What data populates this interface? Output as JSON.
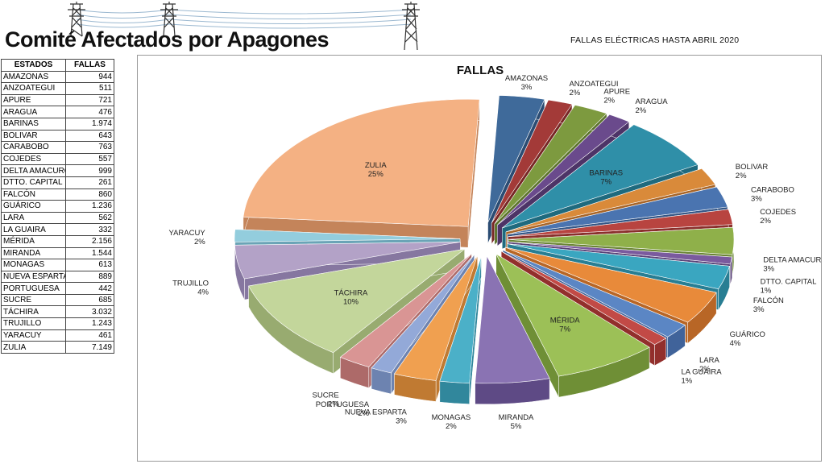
{
  "header": {
    "brand_title": "Comité Afectados por Apagones",
    "top_right_title": "FALLAS ELÉCTRICAS HASTA ABRIL 2020"
  },
  "table": {
    "headers": [
      "ESTADOS",
      "FALLAS"
    ],
    "rows": [
      {
        "estado": "AMAZONAS",
        "fallas": "944"
      },
      {
        "estado": "ANZOATEGUI",
        "fallas": "511"
      },
      {
        "estado": "APURE",
        "fallas": "721"
      },
      {
        "estado": "ARAGUA",
        "fallas": "476"
      },
      {
        "estado": "BARINAS",
        "fallas": "1.974"
      },
      {
        "estado": "BOLIVAR",
        "fallas": "643"
      },
      {
        "estado": "CARABOBO",
        "fallas": "763"
      },
      {
        "estado": "COJEDES",
        "fallas": "557"
      },
      {
        "estado": "DELTA AMACURO",
        "fallas": "999"
      },
      {
        "estado": "DTTO. CAPITAL",
        "fallas": "261"
      },
      {
        "estado": "FALCÓN",
        "fallas": "860"
      },
      {
        "estado": "GUÁRICO",
        "fallas": "1.236"
      },
      {
        "estado": "LARA",
        "fallas": "562"
      },
      {
        "estado": "LA GUAIRA",
        "fallas": "332"
      },
      {
        "estado": "MÉRIDA",
        "fallas": "2.156"
      },
      {
        "estado": "MIRANDA",
        "fallas": "1.544"
      },
      {
        "estado": "MONAGAS",
        "fallas": "613"
      },
      {
        "estado": "NUEVA ESPARTA",
        "fallas": "889"
      },
      {
        "estado": "PORTUGUESA",
        "fallas": "442"
      },
      {
        "estado": "SUCRE",
        "fallas": "685"
      },
      {
        "estado": "TÁCHIRA",
        "fallas": "3.032"
      },
      {
        "estado": "TRUJILLO",
        "fallas": "1.243"
      },
      {
        "estado": "YARACUY",
        "fallas": "461"
      },
      {
        "estado": "ZULIA",
        "fallas": "7.149"
      }
    ]
  },
  "chart_data": {
    "type": "pie",
    "title": "FALLAS",
    "style": "3d-exploded",
    "slices": [
      {
        "label": "AMAZONAS",
        "value": 944,
        "pct": "3%",
        "color": "#3f6a9a",
        "side": "#2b4c73"
      },
      {
        "label": "ANZOATEGUI",
        "value": 511,
        "pct": "2%",
        "color": "#a33a38",
        "side": "#782725"
      },
      {
        "label": "APURE",
        "value": 721,
        "pct": "2%",
        "color": "#7d9a3f",
        "side": "#5b722b"
      },
      {
        "label": "ARAGUA",
        "value": 476,
        "pct": "2%",
        "color": "#6a4a8c",
        "side": "#4d3467"
      },
      {
        "label": "BARINAS",
        "value": 1974,
        "pct": "7%",
        "color": "#2f8fa8",
        "side": "#1f6a7e"
      },
      {
        "label": "BOLIVAR",
        "value": 643,
        "pct": "2%",
        "color": "#d98a3a",
        "side": "#a86528"
      },
      {
        "label": "CARABOBO",
        "value": 763,
        "pct": "3%",
        "color": "#4a74b0",
        "side": "#345686"
      },
      {
        "label": "COJEDES",
        "value": 557,
        "pct": "2%",
        "color": "#b84440",
        "side": "#8a2f2c"
      },
      {
        "label": "DELTA AMACURO",
        "value": 999,
        "pct": "3%",
        "color": "#8fb04a",
        "side": "#6a8535"
      },
      {
        "label": "DTTO. CAPITAL",
        "value": 261,
        "pct": "1%",
        "color": "#7a5a9e",
        "side": "#584076"
      },
      {
        "label": "FALCÓN",
        "value": 860,
        "pct": "3%",
        "color": "#3aa6c0",
        "side": "#287e93"
      },
      {
        "label": "GUÁRICO",
        "value": 1236,
        "pct": "4%",
        "color": "#e88a3a",
        "side": "#b86626"
      },
      {
        "label": "LARA",
        "value": 562,
        "pct": "2%",
        "color": "#5b86c4",
        "side": "#40639a"
      },
      {
        "label": "LA GUAIRA",
        "value": 332,
        "pct": "1%",
        "color": "#c24a46",
        "side": "#922f2c"
      },
      {
        "label": "MÉRIDA",
        "value": 2156,
        "pct": "7%",
        "color": "#9cc057",
        "side": "#6f8f36"
      },
      {
        "label": "MIRANDA",
        "value": 1544,
        "pct": "5%",
        "color": "#8a73b3",
        "side": "#5e4a85"
      },
      {
        "label": "MONAGAS",
        "value": 613,
        "pct": "2%",
        "color": "#4bb0c8",
        "side": "#31879c"
      },
      {
        "label": "NUEVA ESPARTA",
        "value": 889,
        "pct": "3%",
        "color": "#f0a050",
        "side": "#c07a32"
      },
      {
        "label": "PORTUGUESA",
        "value": 442,
        "pct": "2%",
        "color": "#93a9d8",
        "side": "#6d83b0"
      },
      {
        "label": "SUCRE",
        "value": 685,
        "pct": "2%",
        "color": "#d99594",
        "side": "#ad6a69"
      },
      {
        "label": "TÁCHIRA",
        "value": 3032,
        "pct": "10%",
        "color": "#c3d69b",
        "side": "#98ab70"
      },
      {
        "label": "TRUJILLO",
        "value": 1243,
        "pct": "4%",
        "color": "#b3a2c7",
        "side": "#8677a0"
      },
      {
        "label": "YARACUY",
        "value": 461,
        "pct": "2%",
        "color": "#93cddd",
        "side": "#6aa4b6"
      },
      {
        "label": "ZULIA",
        "value": 7149,
        "pct": "25%",
        "color": "#f4b183",
        "side": "#c4845a"
      }
    ]
  }
}
